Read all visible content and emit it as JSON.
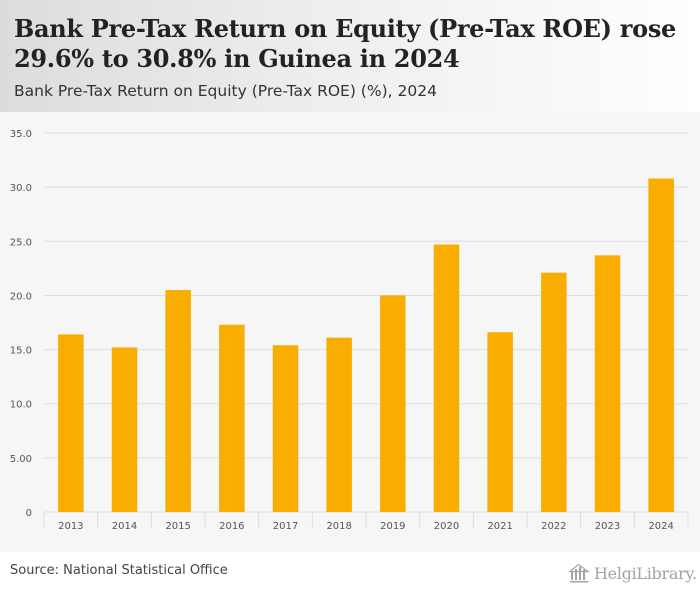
{
  "title": "Bank Pre-Tax Return on Equity (Pre-Tax ROE) rose 29.6% to 30.8% in Guinea in 2024",
  "subtitle": "Bank Pre-Tax Return on Equity (Pre-Tax ROE) (%), 2024",
  "source": "Source: National Statistical Office",
  "logo": {
    "text": "HelgiLibrary.",
    "icon": "library-building-icon"
  },
  "colors": {
    "bar": "#f9ad00",
    "grid": "#dddddd",
    "plot_bg": "#f6f6f6",
    "axis_text": "#555555"
  },
  "chart_data": {
    "type": "bar",
    "title": "Bank Pre-Tax Return on Equity (Pre-Tax ROE) (%), 2024",
    "xlabel": "",
    "ylabel": "",
    "categories": [
      "2013",
      "2014",
      "2015",
      "2016",
      "2017",
      "2018",
      "2019",
      "2020",
      "2021",
      "2022",
      "2023",
      "2024"
    ],
    "values": [
      16.4,
      15.2,
      20.5,
      17.3,
      15.4,
      16.1,
      20.0,
      24.7,
      16.6,
      22.1,
      23.7,
      30.8
    ],
    "ylim": [
      0,
      35
    ],
    "yticks": [
      0,
      5,
      10,
      15,
      20,
      25,
      30,
      35
    ],
    "ytick_labels": [
      "0",
      "5.00",
      "10.0",
      "15.0",
      "20.0",
      "25.0",
      "30.0",
      "35.0"
    ],
    "grid": true,
    "legend": "none"
  }
}
